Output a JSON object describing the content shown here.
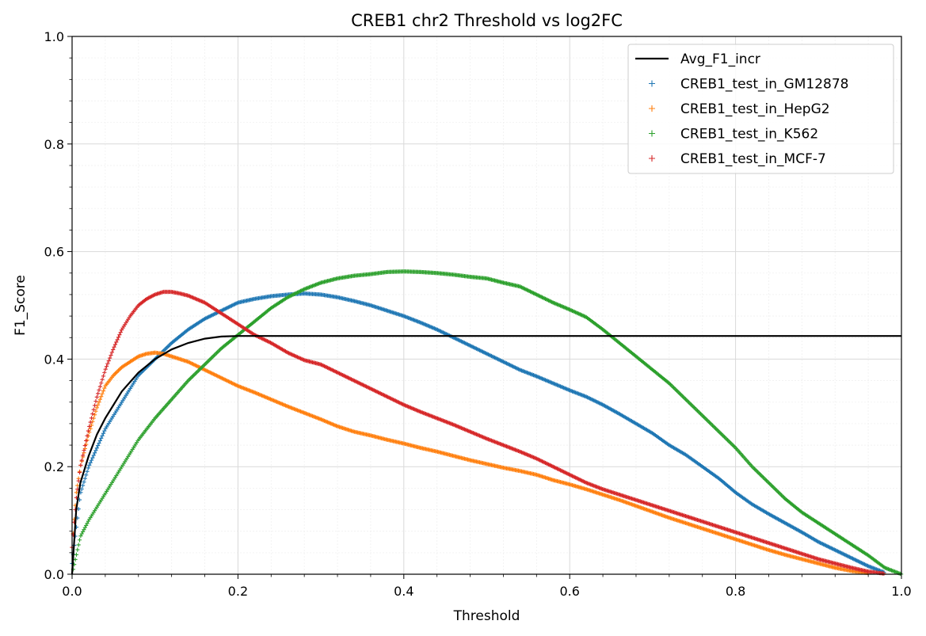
{
  "chart_data": {
    "type": "line",
    "title": "CREB1 chr2 Threshold vs log2FC",
    "xlabel": "Threshold",
    "ylabel": "F1_Score",
    "xlim": [
      0.0,
      1.0
    ],
    "ylim": [
      0.0,
      1.0
    ],
    "grid": true,
    "minor_grid": true,
    "legend_position": "top-right",
    "x_ticks": [
      "0.0",
      "0.2",
      "0.4",
      "0.6",
      "0.8",
      "1.0"
    ],
    "y_ticks": [
      "0.0",
      "0.2",
      "0.4",
      "0.6",
      "0.8",
      "1.0"
    ],
    "series": [
      {
        "name": "Avg_F1_incr",
        "style": "line",
        "color": "#000000",
        "x": [
          0.0,
          0.005,
          0.01,
          0.02,
          0.03,
          0.04,
          0.05,
          0.06,
          0.08,
          0.1,
          0.12,
          0.14,
          0.16,
          0.18,
          0.2,
          0.3,
          0.5,
          0.7,
          0.9,
          1.0
        ],
        "y": [
          0.0,
          0.12,
          0.17,
          0.22,
          0.26,
          0.29,
          0.315,
          0.34,
          0.375,
          0.4,
          0.418,
          0.43,
          0.438,
          0.442,
          0.443,
          0.443,
          0.443,
          0.443,
          0.443,
          0.443
        ]
      },
      {
        "name": "CREB1_test_in_GM12878",
        "style": "markers",
        "color": "#1f77b4",
        "x": [
          0.0,
          0.01,
          0.02,
          0.04,
          0.06,
          0.08,
          0.1,
          0.12,
          0.14,
          0.16,
          0.18,
          0.2,
          0.22,
          0.24,
          0.26,
          0.28,
          0.3,
          0.32,
          0.34,
          0.36,
          0.38,
          0.4,
          0.42,
          0.44,
          0.46,
          0.48,
          0.5,
          0.52,
          0.54,
          0.56,
          0.58,
          0.6,
          0.62,
          0.64,
          0.66,
          0.68,
          0.7,
          0.72,
          0.74,
          0.76,
          0.78,
          0.8,
          0.82,
          0.84,
          0.86,
          0.88,
          0.9,
          0.92,
          0.94,
          0.96,
          0.98
        ],
        "y": [
          0.02,
          0.15,
          0.2,
          0.27,
          0.32,
          0.37,
          0.4,
          0.43,
          0.455,
          0.475,
          0.49,
          0.505,
          0.512,
          0.517,
          0.52,
          0.522,
          0.52,
          0.515,
          0.508,
          0.5,
          0.49,
          0.48,
          0.468,
          0.455,
          0.44,
          0.425,
          0.41,
          0.395,
          0.38,
          0.368,
          0.355,
          0.342,
          0.33,
          0.315,
          0.298,
          0.28,
          0.262,
          0.24,
          0.222,
          0.2,
          0.178,
          0.152,
          0.13,
          0.112,
          0.095,
          0.078,
          0.06,
          0.045,
          0.03,
          0.015,
          0.003
        ]
      },
      {
        "name": "CREB1_test_in_HepG2",
        "style": "markers",
        "color": "#ff7f0e",
        "x": [
          0.0,
          0.005,
          0.01,
          0.02,
          0.03,
          0.04,
          0.05,
          0.06,
          0.07,
          0.08,
          0.09,
          0.1,
          0.11,
          0.12,
          0.13,
          0.14,
          0.16,
          0.18,
          0.2,
          0.22,
          0.24,
          0.26,
          0.28,
          0.3,
          0.32,
          0.34,
          0.36,
          0.38,
          0.4,
          0.42,
          0.44,
          0.46,
          0.48,
          0.5,
          0.52,
          0.54,
          0.56,
          0.58,
          0.6,
          0.62,
          0.64,
          0.66,
          0.68,
          0.7,
          0.72,
          0.74,
          0.76,
          0.78,
          0.8,
          0.82,
          0.84,
          0.86,
          0.88,
          0.9,
          0.92,
          0.94,
          0.96
        ],
        "y": [
          0.05,
          0.15,
          0.2,
          0.26,
          0.31,
          0.35,
          0.37,
          0.385,
          0.395,
          0.405,
          0.41,
          0.412,
          0.41,
          0.405,
          0.4,
          0.395,
          0.38,
          0.365,
          0.35,
          0.338,
          0.325,
          0.312,
          0.3,
          0.288,
          0.275,
          0.265,
          0.258,
          0.25,
          0.243,
          0.235,
          0.228,
          0.22,
          0.212,
          0.205,
          0.198,
          0.192,
          0.185,
          0.175,
          0.167,
          0.158,
          0.148,
          0.138,
          0.127,
          0.116,
          0.105,
          0.095,
          0.085,
          0.075,
          0.065,
          0.055,
          0.045,
          0.036,
          0.028,
          0.02,
          0.012,
          0.006,
          0.002
        ]
      },
      {
        "name": "CREB1_test_in_K562",
        "style": "markers",
        "color": "#2ca02c",
        "x": [
          0.0,
          0.01,
          0.02,
          0.04,
          0.06,
          0.08,
          0.1,
          0.12,
          0.14,
          0.16,
          0.18,
          0.2,
          0.22,
          0.24,
          0.26,
          0.28,
          0.3,
          0.32,
          0.34,
          0.36,
          0.38,
          0.4,
          0.42,
          0.44,
          0.46,
          0.48,
          0.5,
          0.52,
          0.54,
          0.56,
          0.58,
          0.6,
          0.62,
          0.64,
          0.66,
          0.68,
          0.7,
          0.72,
          0.74,
          0.76,
          0.78,
          0.8,
          0.82,
          0.84,
          0.86,
          0.88,
          0.9,
          0.92,
          0.94,
          0.96,
          0.98,
          1.0
        ],
        "y": [
          0.0,
          0.07,
          0.1,
          0.15,
          0.2,
          0.25,
          0.29,
          0.325,
          0.36,
          0.39,
          0.42,
          0.445,
          0.47,
          0.495,
          0.515,
          0.53,
          0.542,
          0.55,
          0.555,
          0.558,
          0.562,
          0.563,
          0.562,
          0.56,
          0.557,
          0.553,
          0.55,
          0.542,
          0.535,
          0.52,
          0.505,
          0.492,
          0.478,
          0.455,
          0.43,
          0.405,
          0.38,
          0.355,
          0.325,
          0.295,
          0.265,
          0.235,
          0.2,
          0.17,
          0.14,
          0.115,
          0.095,
          0.075,
          0.055,
          0.035,
          0.012,
          0.0
        ]
      },
      {
        "name": "CREB1_test_in_MCF-7",
        "style": "markers",
        "color": "#d62728",
        "x": [
          0.0,
          0.005,
          0.01,
          0.02,
          0.03,
          0.04,
          0.05,
          0.06,
          0.07,
          0.08,
          0.09,
          0.1,
          0.11,
          0.12,
          0.13,
          0.14,
          0.16,
          0.18,
          0.2,
          0.22,
          0.24,
          0.26,
          0.28,
          0.3,
          0.32,
          0.34,
          0.36,
          0.38,
          0.4,
          0.42,
          0.44,
          0.46,
          0.48,
          0.5,
          0.52,
          0.54,
          0.56,
          0.58,
          0.6,
          0.62,
          0.64,
          0.66,
          0.68,
          0.7,
          0.72,
          0.74,
          0.76,
          0.78,
          0.8,
          0.82,
          0.84,
          0.86,
          0.88,
          0.9,
          0.92,
          0.94,
          0.96,
          0.98
        ],
        "y": [
          0.05,
          0.14,
          0.2,
          0.27,
          0.33,
          0.38,
          0.42,
          0.455,
          0.48,
          0.5,
          0.512,
          0.52,
          0.525,
          0.525,
          0.522,
          0.518,
          0.505,
          0.485,
          0.465,
          0.445,
          0.43,
          0.412,
          0.398,
          0.39,
          0.375,
          0.36,
          0.345,
          0.33,
          0.315,
          0.302,
          0.29,
          0.278,
          0.265,
          0.252,
          0.24,
          0.228,
          0.215,
          0.2,
          0.185,
          0.17,
          0.158,
          0.148,
          0.138,
          0.128,
          0.118,
          0.108,
          0.098,
          0.088,
          0.078,
          0.068,
          0.058,
          0.048,
          0.038,
          0.028,
          0.02,
          0.012,
          0.005,
          0.001
        ]
      }
    ]
  }
}
